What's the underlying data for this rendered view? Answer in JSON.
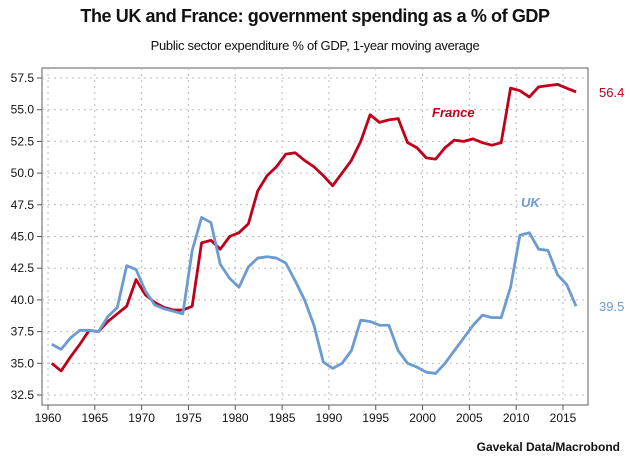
{
  "chart_data": {
    "type": "line",
    "title": "The UK and France: government spending as a % of GDP",
    "subtitle": "Public sector expenditure % of GDP, 1-year moving average",
    "source": "Gavekal Data/Macrobond",
    "xlim": [
      1959.5,
      2017.5
    ],
    "ylim": [
      32,
      58.2
    ],
    "x_ticks": [
      1960,
      1965,
      1970,
      1975,
      1980,
      1985,
      1990,
      1995,
      2000,
      2005,
      2010,
      2015
    ],
    "y_ticks": [
      "32.5",
      "35.0",
      "37.5",
      "40.0",
      "42.5",
      "45.0",
      "47.5",
      "50.0",
      "52.5",
      "55.0",
      "57.5"
    ],
    "grid": true,
    "x": [
      1960,
      1961,
      1962,
      1963,
      1964,
      1965,
      1966,
      1967,
      1968,
      1969,
      1970,
      1971,
      1972,
      1973,
      1974,
      1975,
      1976,
      1977,
      1978,
      1979,
      1980,
      1981,
      1982,
      1983,
      1984,
      1985,
      1986,
      1987,
      1988,
      1989,
      1990,
      1991,
      1992,
      1993,
      1994,
      1995,
      1996,
      1997,
      1998,
      1999,
      2000,
      2001,
      2002,
      2003,
      2004,
      2005,
      2006,
      2007,
      2008,
      2009,
      2010,
      2011,
      2012,
      2013,
      2014,
      2015,
      2016
    ],
    "series": [
      {
        "name": "France",
        "color": "#c0001a",
        "end_label": "56.4",
        "values": [
          35.0,
          34.4,
          35.5,
          36.5,
          37.6,
          37.5,
          38.3,
          38.9,
          39.5,
          41.6,
          40.4,
          39.8,
          39.4,
          39.2,
          39.2,
          39.5,
          44.5,
          44.7,
          44.0,
          45.0,
          45.3,
          46.0,
          48.6,
          49.8,
          50.5,
          51.5,
          51.6,
          51.0,
          50.5,
          49.8,
          49.0,
          50.0,
          51.0,
          52.5,
          54.6,
          54.0,
          54.2,
          54.3,
          52.4,
          52.0,
          51.2,
          51.1,
          52.0,
          52.6,
          52.5,
          52.7,
          52.4,
          52.2,
          52.4,
          56.7,
          56.5,
          56.0,
          56.8,
          56.9,
          57.0,
          56.7,
          56.4
        ]
      },
      {
        "name": "UK",
        "color": "#6b9bd1",
        "end_label": "39.5",
        "values": [
          36.5,
          36.1,
          37.0,
          37.6,
          37.6,
          37.5,
          38.7,
          39.4,
          42.7,
          42.4,
          40.7,
          39.6,
          39.3,
          39.1,
          38.9,
          43.9,
          46.5,
          46.1,
          42.8,
          41.7,
          41.0,
          42.6,
          43.3,
          43.4,
          43.3,
          42.9,
          41.5,
          40.0,
          38.0,
          35.1,
          34.6,
          35.0,
          36.0,
          38.4,
          38.3,
          38.0,
          38.0,
          36.0,
          35.0,
          34.7,
          34.3,
          34.2,
          35.0,
          36.0,
          37.0,
          38.0,
          38.8,
          38.6,
          38.6,
          41.0,
          45.1,
          45.3,
          44.0,
          43.9,
          42.0,
          41.2,
          39.5
        ]
      }
    ]
  }
}
